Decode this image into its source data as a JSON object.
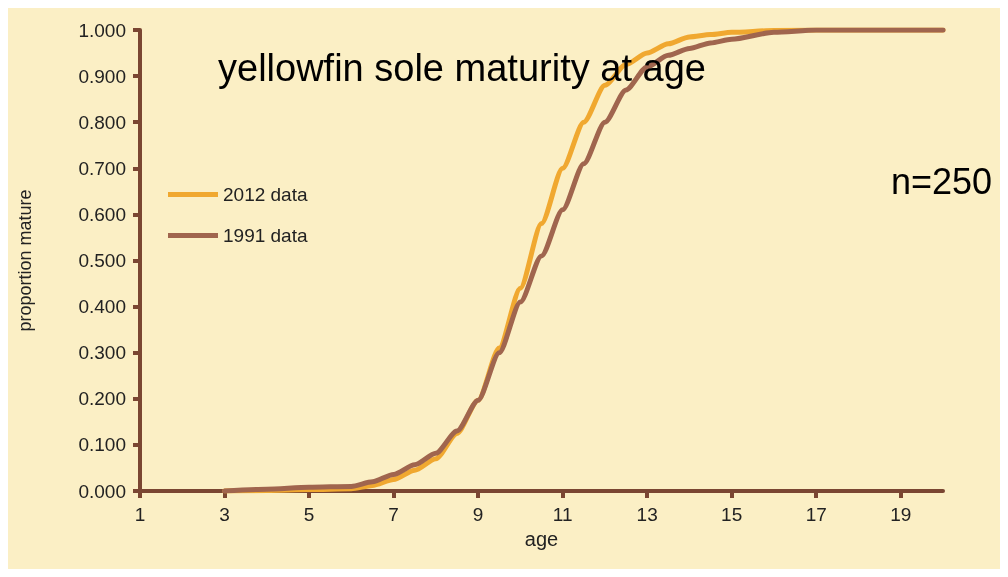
{
  "chart_data": {
    "type": "line",
    "title": "yellowfin sole maturity at age",
    "xlabel": "age",
    "ylabel": "proportion mature",
    "annotations": [
      "n=250"
    ],
    "x": [
      3,
      4,
      5,
      6,
      6.5,
      7,
      7.5,
      8,
      8.5,
      9,
      9.5,
      10,
      10.5,
      11,
      11.5,
      12,
      12.5,
      13,
      13.5,
      14,
      14.5,
      15,
      16,
      17,
      18,
      19,
      20
    ],
    "series": [
      {
        "name": "2012 data",
        "color": "#f0a830",
        "values": [
          0,
          0.001,
          0.003,
          0.005,
          0.012,
          0.025,
          0.045,
          0.07,
          0.125,
          0.197,
          0.31,
          0.44,
          0.58,
          0.7,
          0.8,
          0.88,
          0.925,
          0.95,
          0.97,
          0.985,
          0.99,
          0.995,
          0.999,
          1,
          1,
          1,
          1
        ]
      },
      {
        "name": "1991 data",
        "color": "#a0654e",
        "values": [
          0,
          0.004,
          0.008,
          0.01,
          0.02,
          0.036,
          0.057,
          0.082,
          0.13,
          0.197,
          0.3,
          0.41,
          0.51,
          0.61,
          0.71,
          0.8,
          0.87,
          0.92,
          0.945,
          0.96,
          0.972,
          0.98,
          0.995,
          1,
          1,
          1,
          1
        ]
      }
    ],
    "xlim": [
      1,
      20
    ],
    "xticks": [
      1,
      3,
      5,
      7,
      9,
      11,
      13,
      15,
      17,
      19
    ],
    "ylim": [
      0,
      1
    ],
    "yticks": [
      {
        "value": 0,
        "label": "0.000"
      },
      {
        "value": 0.1,
        "label": "0.100"
      },
      {
        "value": 0.2,
        "label": "0.200"
      },
      {
        "value": 0.3,
        "label": "0.300"
      },
      {
        "value": 0.4,
        "label": "0.400"
      },
      {
        "value": 0.5,
        "label": "0.500"
      },
      {
        "value": 0.6,
        "label": "0.600"
      },
      {
        "value": 0.7,
        "label": "0.700"
      },
      {
        "value": 0.8,
        "label": "0.800"
      },
      {
        "value": 0.9,
        "label": "0.900"
      },
      {
        "value": 1,
        "label": "1.000"
      }
    ],
    "grid": false,
    "legend": "left",
    "marker": "none",
    "line_style": "solid"
  }
}
